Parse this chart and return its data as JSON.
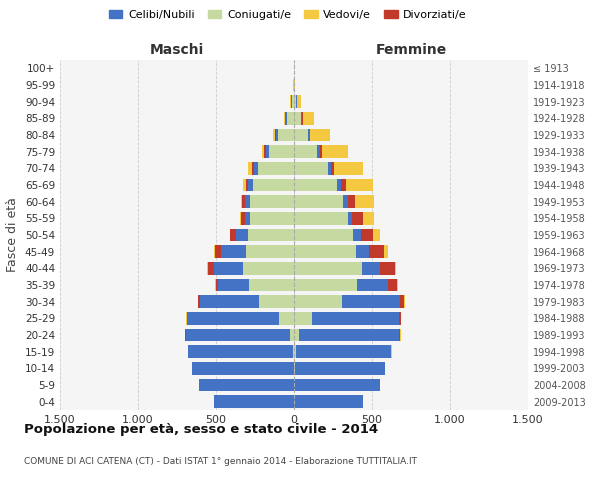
{
  "age_groups": [
    "100+",
    "95-99",
    "90-94",
    "85-89",
    "80-84",
    "75-79",
    "70-74",
    "65-69",
    "60-64",
    "55-59",
    "50-54",
    "45-49",
    "40-44",
    "35-39",
    "30-34",
    "25-29",
    "20-24",
    "15-19",
    "10-14",
    "5-9",
    "0-4"
  ],
  "birth_years": [
    "≤ 1913",
    "1914-1918",
    "1919-1923",
    "1924-1928",
    "1929-1933",
    "1934-1938",
    "1939-1943",
    "1944-1948",
    "1949-1953",
    "1954-1958",
    "1959-1963",
    "1964-1968",
    "1969-1973",
    "1974-1978",
    "1979-1983",
    "1984-1988",
    "1989-1993",
    "1994-1998",
    "1999-2003",
    "2004-2008",
    "2009-2013"
  ],
  "male": {
    "coniugato": [
      0,
      1,
      12,
      45,
      100,
      160,
      230,
      265,
      285,
      285,
      295,
      305,
      330,
      290,
      225,
      95,
      25,
      8,
      3,
      1,
      1
    ],
    "celibe": [
      1,
      2,
      8,
      12,
      18,
      22,
      28,
      28,
      28,
      28,
      75,
      165,
      185,
      195,
      380,
      590,
      670,
      670,
      650,
      610,
      510
    ],
    "vedovo": [
      0,
      1,
      4,
      8,
      12,
      18,
      22,
      18,
      8,
      6,
      4,
      2,
      2,
      1,
      1,
      1,
      1,
      0,
      0,
      0,
      0
    ],
    "divorziato": [
      0,
      0,
      1,
      2,
      3,
      8,
      12,
      14,
      18,
      28,
      38,
      38,
      38,
      18,
      8,
      4,
      2,
      1,
      0,
      0,
      0
    ]
  },
  "female": {
    "coniugata": [
      0,
      1,
      12,
      45,
      88,
      148,
      215,
      275,
      315,
      345,
      375,
      395,
      435,
      405,
      305,
      115,
      35,
      12,
      4,
      1,
      1
    ],
    "nubile": [
      1,
      2,
      6,
      8,
      12,
      18,
      22,
      28,
      28,
      28,
      55,
      85,
      115,
      195,
      375,
      560,
      640,
      610,
      580,
      550,
      440
    ],
    "vedova": [
      0,
      4,
      28,
      75,
      125,
      165,
      185,
      175,
      125,
      75,
      45,
      28,
      12,
      6,
      4,
      2,
      2,
      1,
      0,
      0,
      0
    ],
    "divorziata": [
      0,
      0,
      1,
      2,
      4,
      12,
      18,
      28,
      48,
      68,
      78,
      95,
      95,
      58,
      28,
      12,
      6,
      2,
      1,
      0,
      0
    ]
  },
  "colors": {
    "celibe": "#4472C4",
    "coniugato": "#C5D9A0",
    "vedovo": "#F5C842",
    "divorziato": "#C0392B"
  },
  "title": "Popolazione per età, sesso e stato civile - 2014",
  "subtitle": "COMUNE DI ACI CATENA (CT) - Dati ISTAT 1° gennaio 2014 - Elaborazione TUTTITALIA.IT",
  "xlabel_left": "Maschi",
  "xlabel_right": "Femmine",
  "ylabel": "Fasce di età",
  "xlim": 1500,
  "bg_color": "#f5f5f5",
  "grid_color": "#cccccc"
}
